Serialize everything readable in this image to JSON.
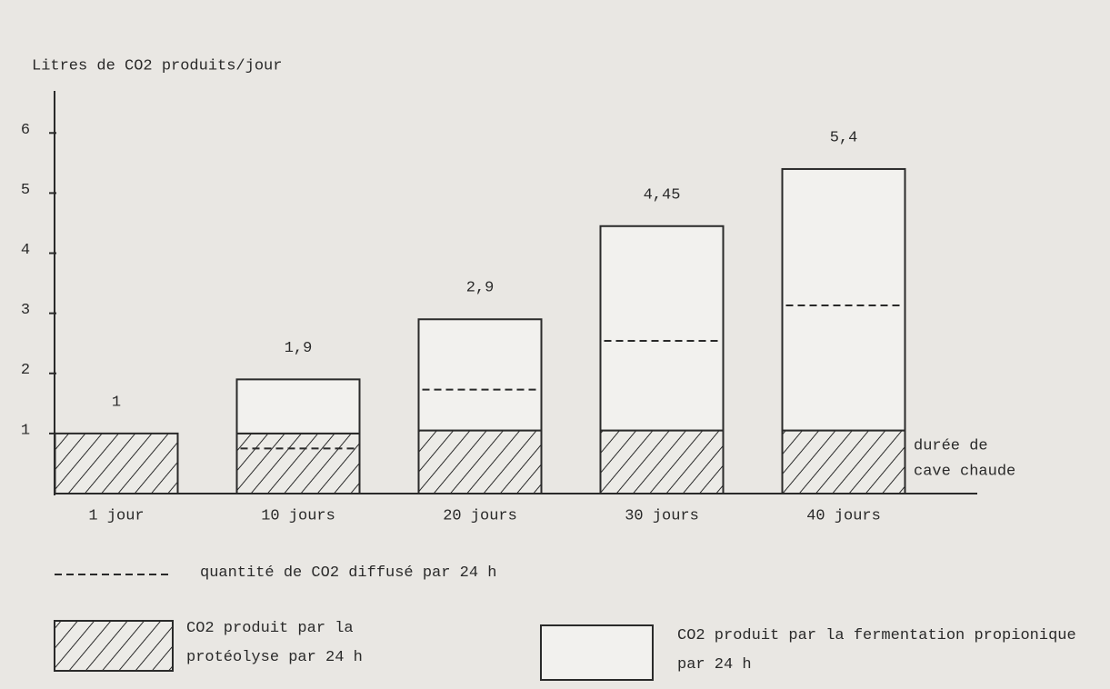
{
  "chart_data": {
    "type": "bar",
    "y_label": "Litres de CO2 produits/jour",
    "categories": [
      "1 jour",
      "10 jours",
      "20 jours",
      "30 jours",
      "40 jours"
    ],
    "series": [
      {
        "name": "CO2 produit par la protéolyse par 24 h",
        "color": "#2a2a2a",
        "values": [
          1,
          1,
          1.05,
          1.05,
          1.05
        ]
      },
      {
        "name": "CO2 produit par la fermentation propionique par 24 h",
        "color": "#f2f1ee",
        "values": [
          0,
          0.9,
          1.85,
          3.4,
          4.35
        ]
      }
    ],
    "line_series": {
      "name": "quantité de CO2 diffusé par 24 h",
      "values": [
        null,
        0.75,
        1.73,
        2.54,
        3.13
      ]
    },
    "totals": [
      1,
      1.9,
      2.9,
      4.45,
      5.4
    ],
    "total_labels": [
      "1",
      "1,9",
      "2,9",
      "4,45",
      "5,4"
    ],
    "annotation": [
      "durée de",
      "cave chaude"
    ],
    "ylim": [
      0,
      6.7
    ],
    "yticks": [
      1,
      2,
      3,
      4,
      5,
      6
    ]
  }
}
